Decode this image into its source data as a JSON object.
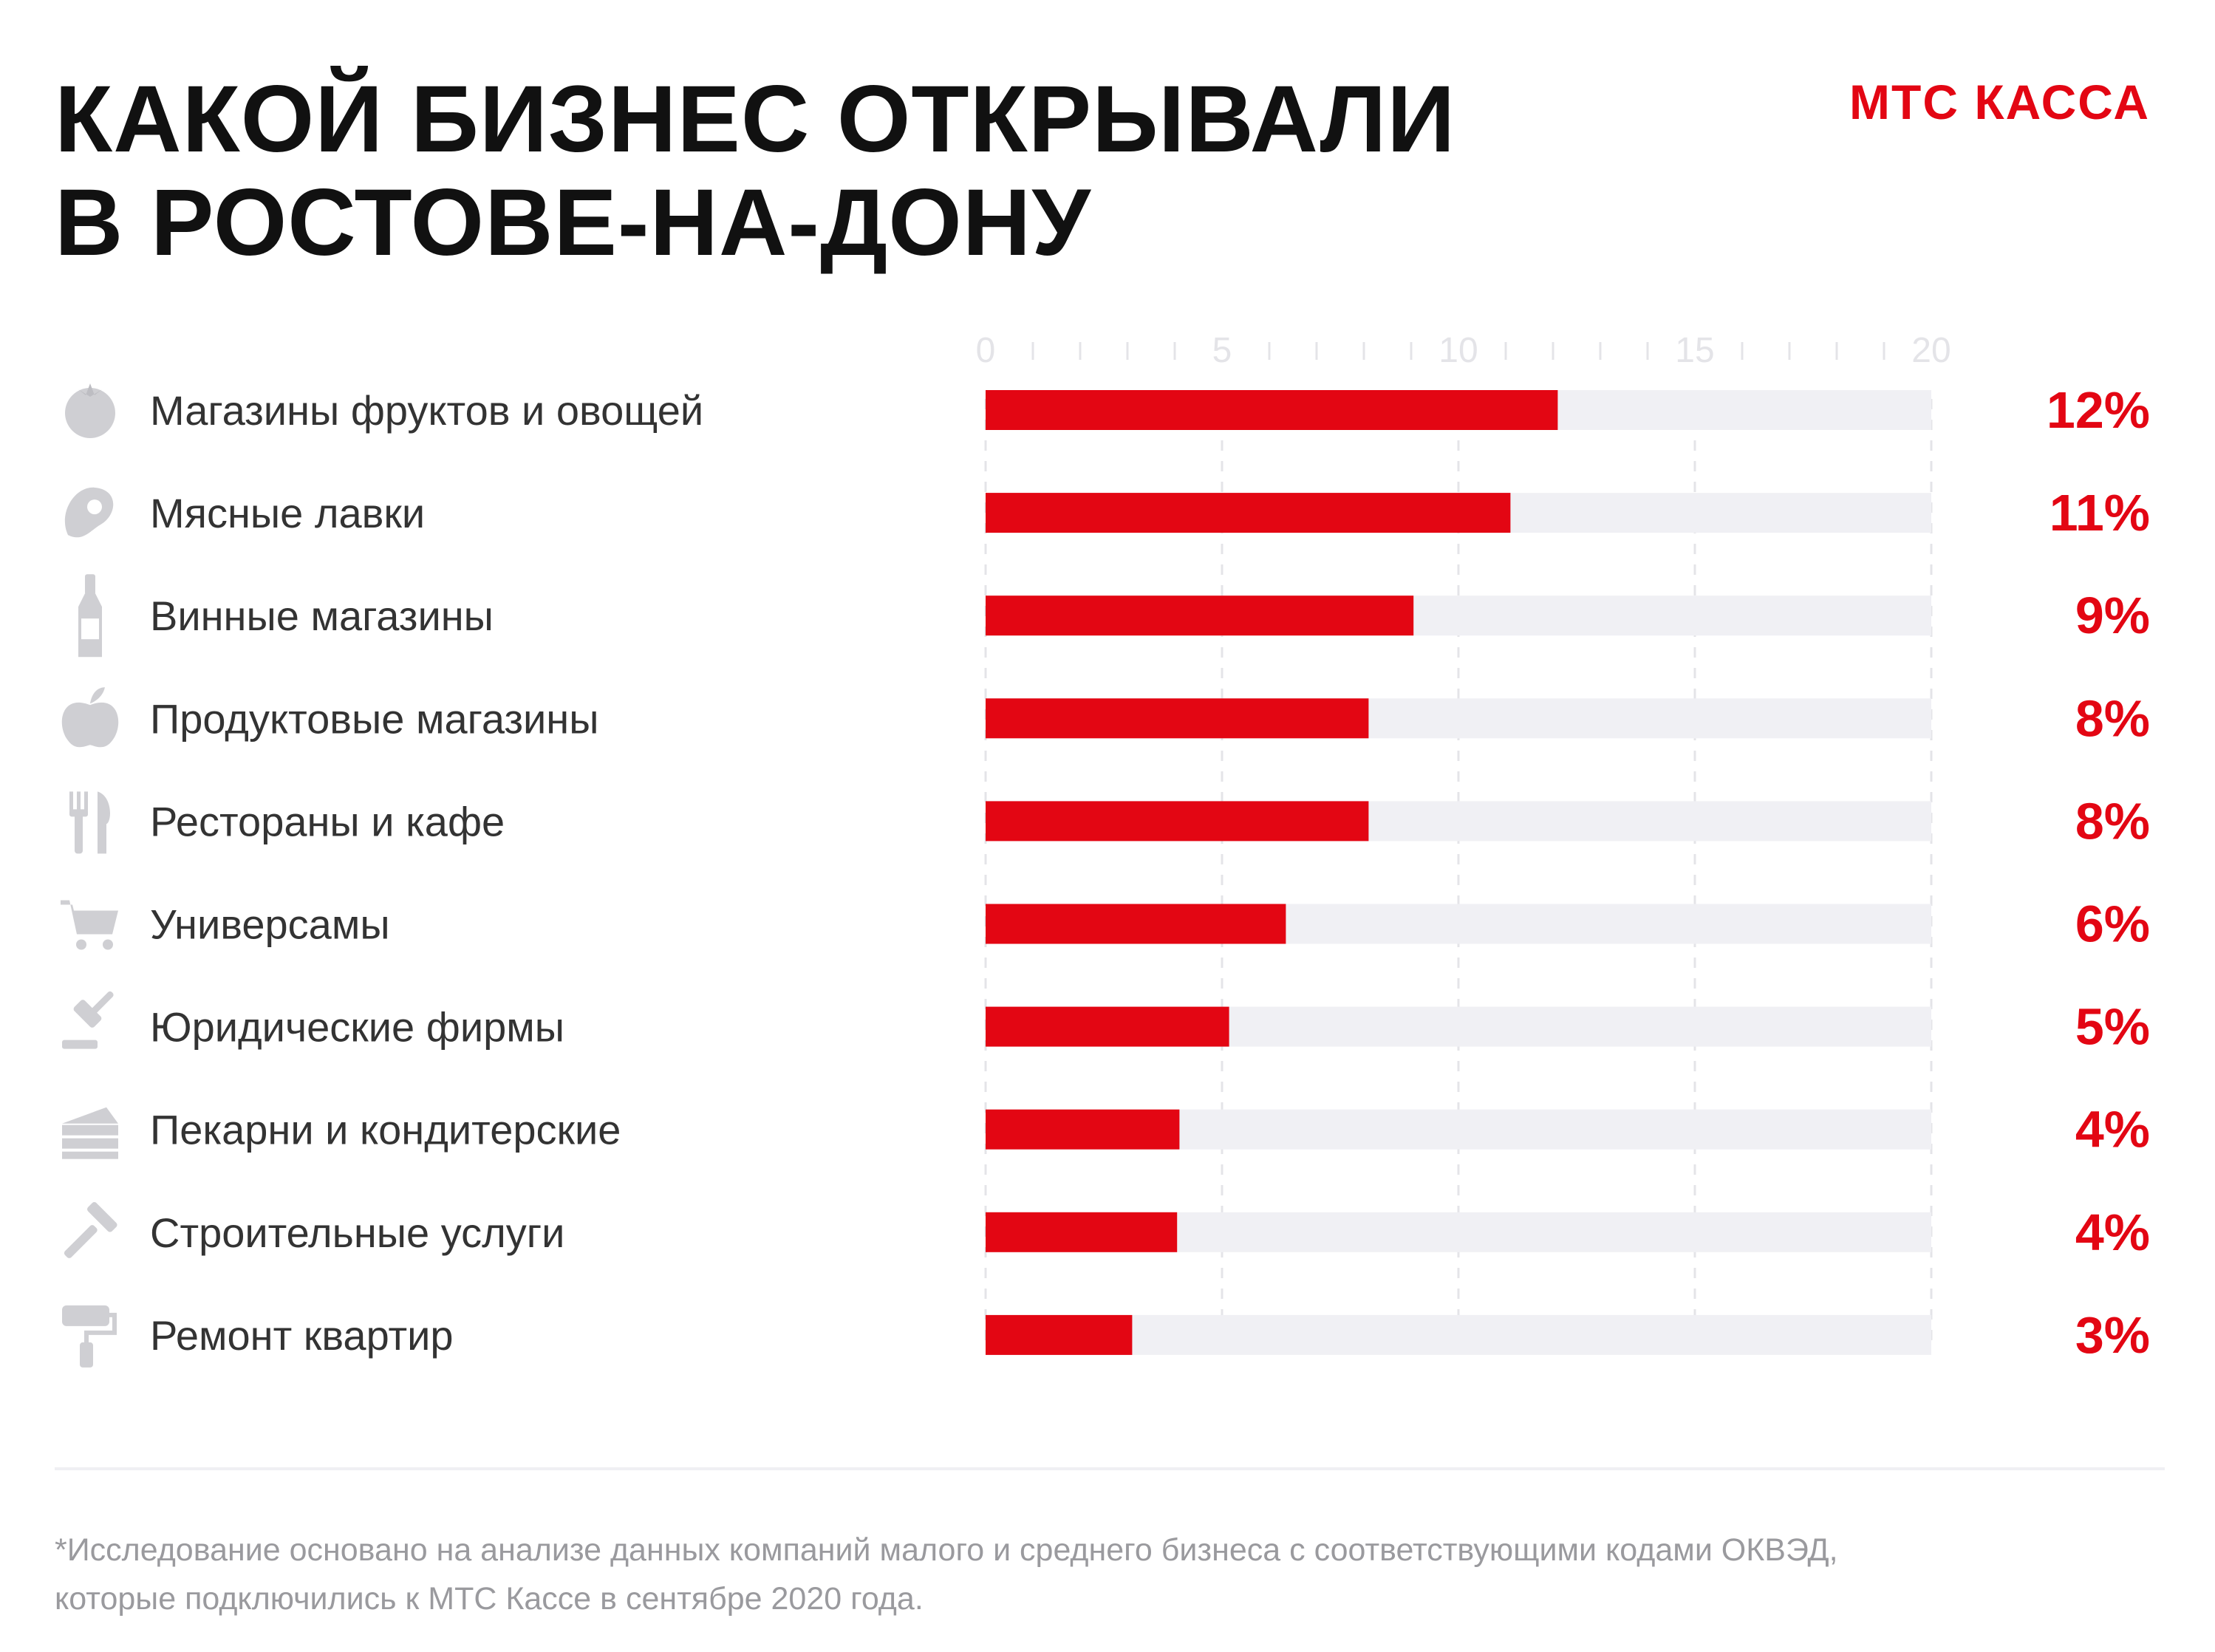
{
  "header": {
    "title_line1": "КАКОЙ БИЗНЕС ОТКРЫВАЛИ",
    "title_line2": "В РОСТОВЕ-НА-ДОНУ",
    "brand": "МТС КАССА"
  },
  "colors": {
    "accent": "#e30613",
    "track": "#f0f0f4",
    "icon": "#cfcfd3",
    "label": "#333333",
    "tick": "#e4e4e8",
    "footnote": "#9a9a9e"
  },
  "chart_data": {
    "type": "bar",
    "orientation": "horizontal",
    "title": "КАКОЙ БИЗНЕС ОТКРЫВАЛИ В РОСТОВЕ-НА-ДОНУ",
    "xlim": [
      0,
      20
    ],
    "xticks": [
      0,
      5,
      10,
      15,
      20
    ],
    "grid": true,
    "categories": [
      "Магазины фруктов и овощей",
      "Мясные лавки",
      "Винные магазины",
      "Продуктовые магазины",
      "Рестораны и кафе",
      "Универсамы",
      "Юридические фирмы",
      "Пекарни и кондитерские",
      "Строительные услуги",
      "Ремонт квартир"
    ],
    "icons": [
      "tomato-icon",
      "steak-icon",
      "wine-bottle-icon",
      "apple-icon",
      "fork-knife-icon",
      "shopping-cart-icon",
      "gavel-icon",
      "cake-icon",
      "hammer-icon",
      "paint-roller-icon"
    ],
    "values": [
      12.1,
      11.1,
      9.05,
      8.1,
      8.1,
      6.35,
      5.15,
      4.1,
      4.05,
      3.1
    ],
    "value_labels": [
      "12%",
      "11%",
      "9%",
      "8%",
      "8%",
      "6%",
      "5%",
      "4%",
      "4%",
      "3%"
    ]
  },
  "footnote": {
    "line1": "*Исследование основано на анализе данных компаний малого и среднего бизнеса с соответствующими кодами ОКВЭД,",
    "line2": "которые подключились к МТС Кассе в сентябре 2020 года."
  }
}
